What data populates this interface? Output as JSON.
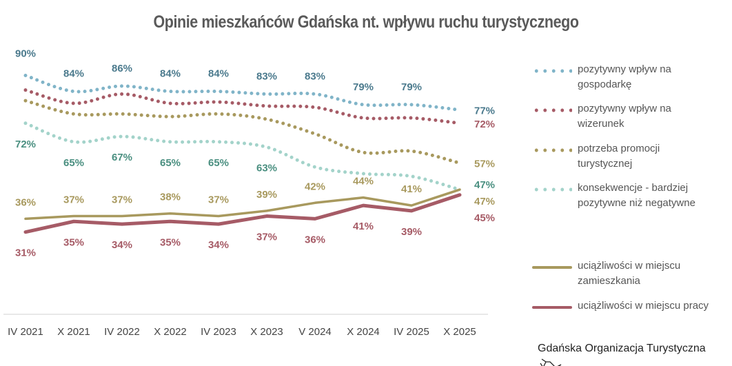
{
  "chart_data": {
    "type": "line",
    "title": "Opinie mieszkańców Gdańska nt. wpływu ruchu turystycznego",
    "categories": [
      "IV 2021",
      "X 2021",
      "IV 2022",
      "X 2022",
      "IV 2023",
      "X 2023",
      "V 2024",
      "X 2024",
      "IV 2025",
      "X 2025"
    ],
    "ylim": [
      0,
      100
    ],
    "grid": false,
    "legend_position": "right",
    "series": [
      {
        "name": "pozytywny wpływ na gospodarkę",
        "style": "dotted",
        "color": "#80b4c8",
        "label_color": "#4b7a8d",
        "values": [
          90,
          84,
          86,
          84,
          84,
          83,
          83,
          79,
          79,
          77
        ],
        "labels": [
          "90%",
          "84%",
          "86%",
          "84%",
          "84%",
          "83%",
          "83%",
          "79%",
          "79%",
          "77%"
        ]
      },
      {
        "name": "pozytywny wpływ na wizerunek",
        "style": "dotted",
        "color": "#a65b66",
        "label_color": "#a65b66",
        "values": [
          84.5,
          79.5,
          83,
          79.5,
          80,
          78.5,
          78,
          74,
          74,
          72
        ],
        "labels": [
          null,
          null,
          null,
          null,
          null,
          null,
          null,
          null,
          null,
          "72%"
        ]
      },
      {
        "name": "potrzeba promocji turystycznej",
        "style": "dotted",
        "color": "#a8995e",
        "label_color": "#a8995e",
        "values": [
          80.5,
          75.5,
          75.5,
          74.5,
          75.5,
          73.5,
          68,
          61,
          61.5,
          57
        ],
        "labels": [
          null,
          null,
          null,
          null,
          null,
          null,
          null,
          null,
          null,
          "57%"
        ]
      },
      {
        "name": "konsekwencje - bardziej pozytywne niż negatywne",
        "style": "dotted",
        "color": "#a3d3ca",
        "label_color": "#4a8f80",
        "values": [
          72,
          65,
          67,
          65,
          65,
          63,
          55.5,
          53,
          52,
          47
        ],
        "labels": [
          "72%",
          "65%",
          "67%",
          "65%",
          "65%",
          "63%",
          null,
          null,
          null,
          "47%"
        ]
      },
      {
        "name": "uciążliwości w miejscu zamieszkania",
        "style": "solid",
        "color": "#a8995e",
        "label_color": "#a8995e",
        "values": [
          36,
          37,
          37,
          38,
          37,
          39,
          42,
          44,
          41,
          47
        ],
        "labels": [
          "36%",
          "37%",
          "37%",
          "38%",
          "37%",
          "39%",
          "42%",
          "44%",
          "41%",
          "47%"
        ]
      },
      {
        "name": "uciążliwości w miejscu pracy",
        "style": "solid",
        "color": "#a65b66",
        "label_color": "#a65b66",
        "values": [
          31,
          35,
          34,
          35,
          34,
          37,
          36,
          41,
          39,
          45
        ],
        "labels": [
          "31%",
          "35%",
          "34%",
          "35%",
          "34%",
          "37%",
          "36%",
          "41%",
          "39%",
          "45%"
        ]
      }
    ]
  },
  "legend": {
    "items": [
      {
        "line1": "pozytywny wpływ na",
        "line2": "gospodarkę"
      },
      {
        "line1": "pozytywny wpływ na",
        "line2": "wizerunek"
      },
      {
        "line1": "potrzeba promocji",
        "line2": "turystycznej"
      },
      {
        "line1": "konsekwencje - bardziej",
        "line2": "pozytywne niż negatywne"
      },
      {
        "line1": "uciążliwości w miejscu",
        "line2": "zamieszkania"
      },
      {
        "line1": "uciążliwości w miejscu pracy",
        "line2": ""
      }
    ]
  },
  "footer": {
    "text": "Gdańska Organizacja Turystyczna"
  }
}
